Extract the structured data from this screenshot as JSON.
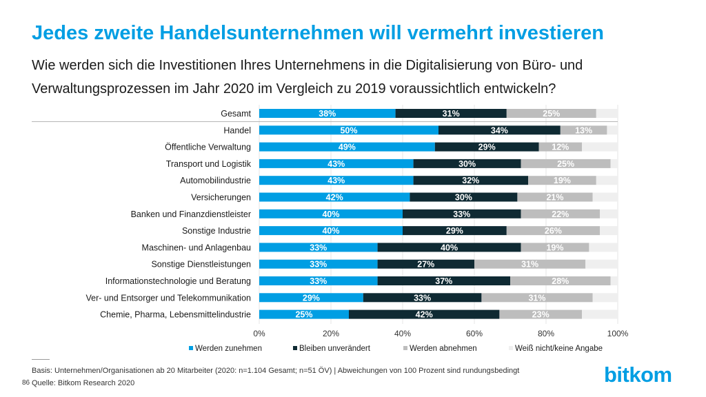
{
  "page": {
    "title": "Jedes zweite Handelsunternehmen will vermehrt investieren",
    "subtitle_line1": "Wie werden sich die Investitionen Ihres Unternehmens in die Digitalisierung von Büro- und",
    "subtitle_line2": "Verwaltungsprozessen im Jahr 2020 im Vergleich zu 2019 voraussichtlich entwickeln?",
    "basis": "Basis: Unternehmen/Organisationen ab 20 Mitarbeiter (2020: n=1.104 Gesamt; n=51 ÖV) | Abweichungen von 100 Prozent sind rundungsbedingt",
    "source": "Quelle: Bitkom Research 2020",
    "page_number": "86",
    "logo": "bitkom"
  },
  "chart_data": {
    "type": "bar",
    "orientation": "horizontal",
    "stacked": true,
    "categories": [
      "Gesamt",
      "Handel",
      "Öffentliche Verwaltung",
      "Transport und Logistik",
      "Automobilindustrie",
      "Versicherungen",
      "Banken und Finanzdienstleister",
      "Sonstige Industrie",
      "Maschinen- und Anlagenbau",
      "Sonstige Dienstleistungen",
      "Informationstechnologie und Beratung",
      "Ver- und Entsorger und Telekommunikation",
      "Chemie, Pharma, Lebensmittelindustrie"
    ],
    "series": [
      {
        "name": "Werden zunehmen",
        "color": "#009ee3",
        "values": [
          38,
          50,
          49,
          43,
          43,
          42,
          40,
          40,
          33,
          33,
          33,
          29,
          25
        ],
        "labels": [
          "38%",
          "50%",
          "49%",
          "43%",
          "43%",
          "42%",
          "40%",
          "40%",
          "33%",
          "33%",
          "33%",
          "29%",
          "25%"
        ]
      },
      {
        "name": "Bleiben unverändert",
        "color": "#0f2a33",
        "values": [
          31,
          34,
          29,
          30,
          32,
          30,
          33,
          29,
          40,
          27,
          37,
          33,
          42
        ],
        "labels": [
          "31%",
          "34%",
          "29%",
          "30%",
          "32%",
          "30%",
          "33%",
          "29%",
          "40%",
          "27%",
          "37%",
          "33%",
          "42%"
        ]
      },
      {
        "name": "Werden abnehmen",
        "color": "#bdbdbd",
        "values": [
          25,
          13,
          12,
          25,
          19,
          21,
          22,
          26,
          19,
          31,
          28,
          31,
          23
        ],
        "labels": [
          "25%",
          "13%",
          "12%",
          "25%",
          "19%",
          "21%",
          "22%",
          "26%",
          "19%",
          "31%",
          "28%",
          "31%",
          "23%"
        ]
      },
      {
        "name": "Weiß nicht/keine Angabe",
        "color": "#efefef",
        "values": [
          6,
          3,
          10,
          2,
          6,
          7,
          5,
          5,
          8,
          9,
          2,
          7,
          10
        ]
      }
    ],
    "xlim": [
      0,
      100
    ],
    "xticks": [
      "0%",
      "20%",
      "40%",
      "60%",
      "80%",
      "100%"
    ],
    "legend_position": "bottom",
    "colors": {
      "label_light": "#ffffff",
      "label_dark": "#ffffff"
    }
  }
}
